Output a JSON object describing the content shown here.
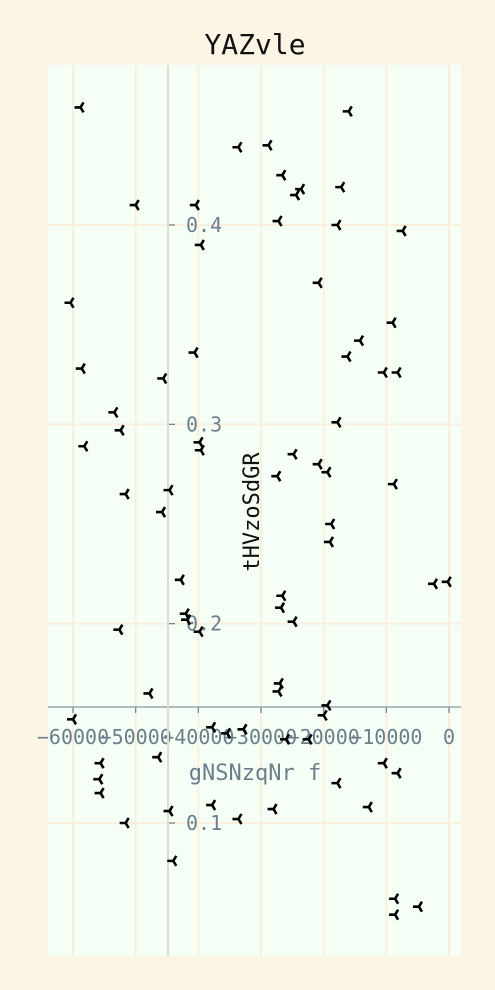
{
  "chart_data": {
    "type": "scatter",
    "title": "YAZvle",
    "xlabel": "gNSNzqNr f",
    "ylabel": "tHVzoSdGR",
    "xlim": [
      -62000,
      1500
    ],
    "ylim": [
      0.034,
      0.415
    ],
    "x_ticks": [
      -60000,
      -50000,
      -40000,
      -30000,
      -20000,
      -10000,
      0
    ],
    "x_tick_labels": [
      "−60000",
      "−50000",
      "−40000",
      "−30000",
      "−20000",
      "−10000",
      "0"
    ],
    "y_ticks": [
      0.1,
      0.2,
      0.3,
      0.4
    ],
    "y_tick_labels": [
      "0.1",
      "0.2",
      "0.3",
      "0.4"
    ],
    "grid": true,
    "colors": {
      "page_background": "#fdf5e4",
      "plot_background": "#f5fff5",
      "grid": "#fbefdc",
      "marker": "#000000",
      "tick_text": "#6a7f8e"
    },
    "series": [
      {
        "marker": "tri_left",
        "points": [
          [
            -58800,
            0.459
          ],
          [
            -16000,
            0.457
          ],
          [
            -33600,
            0.439
          ],
          [
            -28800,
            0.44
          ],
          [
            -26600,
            0.425
          ],
          [
            -50000,
            0.41
          ],
          [
            -40400,
            0.41
          ],
          [
            -23600,
            0.418
          ],
          [
            -24400,
            0.415
          ],
          [
            -17200,
            0.419
          ],
          [
            -27200,
            0.402
          ],
          [
            -17800,
            0.4
          ],
          [
            -7400,
            0.397
          ],
          [
            -39600,
            0.39
          ],
          [
            -20800,
            0.371
          ],
          [
            -60400,
            0.361
          ],
          [
            -9000,
            0.351
          ],
          [
            -14200,
            0.342
          ],
          [
            -16200,
            0.334
          ],
          [
            -40600,
            0.336
          ],
          [
            -58600,
            0.328
          ],
          [
            -10400,
            0.326
          ],
          [
            -8200,
            0.326
          ],
          [
            -45600,
            0.323
          ],
          [
            -53400,
            0.306
          ],
          [
            -52400,
            0.297
          ],
          [
            -17800,
            0.301
          ],
          [
            -39800,
            0.291
          ],
          [
            -39600,
            0.287
          ],
          [
            -58200,
            0.289
          ],
          [
            -24800,
            0.285
          ],
          [
            -20800,
            0.28
          ],
          [
            -19400,
            0.276
          ],
          [
            -27400,
            0.274
          ],
          [
            -8800,
            0.27
          ],
          [
            -51600,
            0.265
          ],
          [
            -44600,
            0.267
          ],
          [
            -45800,
            0.256
          ],
          [
            -18800,
            0.25
          ],
          [
            -19000,
            0.241
          ],
          [
            -42800,
            0.222
          ],
          [
            -2400,
            0.22
          ],
          [
            -200,
            0.221
          ],
          [
            -26600,
            0.214
          ],
          [
            -26800,
            0.208
          ],
          [
            -42000,
            0.205
          ],
          [
            -41800,
            0.202
          ],
          [
            -24800,
            0.201
          ],
          [
            -39800,
            0.196
          ],
          [
            -52600,
            0.197
          ],
          [
            -27000,
            0.17
          ],
          [
            -27200,
            0.166
          ],
          [
            -47800,
            0.165
          ],
          [
            -19400,
            0.159
          ],
          [
            -20000,
            0.154
          ],
          [
            -60000,
            0.152
          ],
          [
            -37800,
            0.148
          ],
          [
            -35400,
            0.145
          ],
          [
            -32800,
            0.147
          ],
          [
            -26000,
            0.142
          ],
          [
            -22400,
            0.142
          ],
          [
            -46400,
            0.133
          ],
          [
            -55600,
            0.13
          ],
          [
            -10400,
            0.13
          ],
          [
            -8200,
            0.125
          ],
          [
            -55800,
            0.122
          ],
          [
            -17800,
            0.12
          ],
          [
            -55600,
            0.115
          ],
          [
            -37800,
            0.109
          ],
          [
            -28000,
            0.107
          ],
          [
            -12800,
            0.108
          ],
          [
            -44600,
            0.106
          ],
          [
            -33600,
            0.102
          ],
          [
            -51600,
            0.1
          ],
          [
            -44000,
            0.081
          ],
          [
            -8600,
            0.062
          ],
          [
            -4800,
            0.058
          ],
          [
            -8600,
            0.054
          ]
        ]
      }
    ]
  }
}
